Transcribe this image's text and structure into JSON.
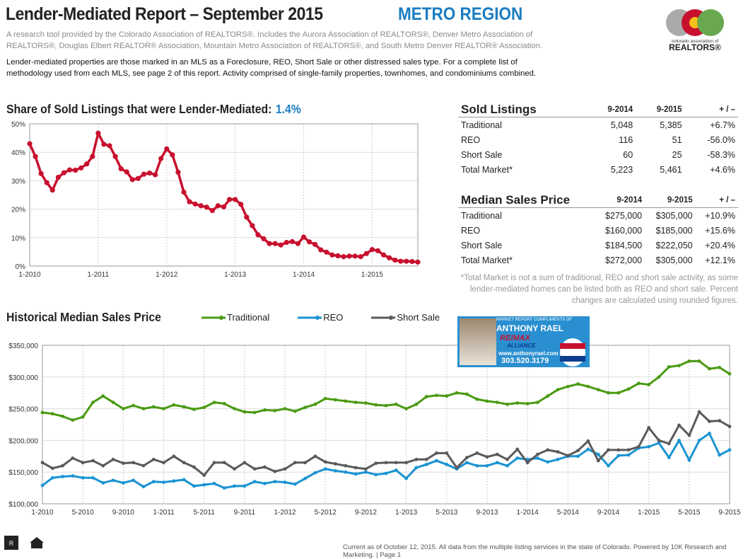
{
  "header": {
    "title": "Lender-Mediated Report – September 2015",
    "region": "METRO REGION",
    "subtitle": "A research tool provided by the Colorado Association of REALTORS®. Includes the Aurora Association of REALTORS®, Denver Metro Association of REALTORS®, Douglas Elbert REALTOR® Association, Mountain Metro Association of REALTORS®, and South Metro Denver REALTOR® Association.",
    "description": "Lender-mediated properties are those marked in an MLS as a Foreclosure, REO, Short Sale or other distressed sales type. For a complete list of methodology used from each MLS, see page 2 of this report. Activity comprised of single-family properties, townhomes, and condominiums combined.",
    "logo": {
      "line1": "colorado association of",
      "line2": "REALTORS®"
    }
  },
  "sold_table": {
    "title": "Sold Listings",
    "cols": [
      "9-2014",
      "9-2015",
      "+ / –"
    ],
    "rows": [
      {
        "label": "Traditional",
        "v": [
          "5,048",
          "5,385",
          "+6.7%"
        ]
      },
      {
        "label": "REO",
        "v": [
          "116",
          "51",
          "-56.0%"
        ]
      },
      {
        "label": "Short Sale",
        "v": [
          "60",
          "25",
          "-58.3%"
        ]
      },
      {
        "label": "Total Market*",
        "v": [
          "5,223",
          "5,461",
          "+4.6%"
        ]
      }
    ]
  },
  "price_table": {
    "title": "Median Sales Price",
    "cols": [
      "9-2014",
      "9-2015",
      "+ / –"
    ],
    "rows": [
      {
        "label": "Traditional",
        "v": [
          "$275,000",
          "$305,000",
          "+10.9%"
        ]
      },
      {
        "label": "REO",
        "v": [
          "$160,000",
          "$185,000",
          "+15.6%"
        ]
      },
      {
        "label": "Short Sale",
        "v": [
          "$184,500",
          "$222,050",
          "+20.4%"
        ]
      },
      {
        "label": "Total Market*",
        "v": [
          "$272,000",
          "$305,000",
          "+12.1%"
        ]
      }
    ]
  },
  "note": "*Total Market is not a sum of traditional, REO and short sale activity, as some lender-mediated homes can be listed both as REO and short sale. Percent changes are calculated using rounded figures.",
  "ad": {
    "line1": "MARKET REPORT COMPLIMENTS OF",
    "name": "ANTHONY RAEL",
    "brand": "RE/MAX",
    "office": "ALLIANCE",
    "url": "www.anthonyrael.com",
    "phone": "303.520.3179"
  },
  "footer": "Current as of October 12, 2015. All data from the multiple listing services in the state of Colorado. Powered by 10K Research and Marketing. | Page 1",
  "chart_data": [
    {
      "type": "line",
      "title": "Share of Sold Listings that were Lender-Mediated:",
      "headline_value": "1.4%",
      "color": "#c8102e",
      "x_start": "1-2010",
      "x_end": "9-2015",
      "frequency": "monthly",
      "xticks": [
        "1-2010",
        "1-2011",
        "1-2012",
        "1-2013",
        "1-2014",
        "1-2015"
      ],
      "yticks": [
        "0%",
        "10%",
        "20%",
        "30%",
        "40%",
        "50%"
      ],
      "ylim": [
        0,
        50
      ],
      "grid": true,
      "values": [
        43,
        38.5,
        32.5,
        29.3,
        26.7,
        31.2,
        32.8,
        33.8,
        33.7,
        34.5,
        35.9,
        38.5,
        46.7,
        42.8,
        42.3,
        38.5,
        34.2,
        33.1,
        30.4,
        30.8,
        32.3,
        32.7,
        32.1,
        37.8,
        41.2,
        39.1,
        33,
        26,
        22.6,
        21.8,
        21.2,
        20.7,
        19.5,
        21.2,
        20.8,
        23.4,
        23.4,
        21.7,
        17.2,
        14.2,
        11,
        9.6,
        7.9,
        7.9,
        7.4,
        8.3,
        8.6,
        7.9,
        10.2,
        8.5,
        7.6,
        5.7,
        4.9,
        3.9,
        3.6,
        3.3,
        3.5,
        3.5,
        3.3,
        4.4,
        5.8,
        5.4,
        3.9,
        2.9,
        2.1,
        1.7,
        1.7,
        1.6,
        1.4
      ]
    },
    {
      "type": "line",
      "title": "Historical Median Sales Price",
      "x_start": "1-2010",
      "x_end": "9-2015",
      "frequency": "monthly",
      "ylim": [
        100000,
        350000
      ],
      "grid": true,
      "legend": "top",
      "xticks": [
        "1-2010",
        "5-2010",
        "9-2010",
        "1-2011",
        "5-2011",
        "9-2011",
        "1-2012",
        "5-2012",
        "9-2012",
        "1-2013",
        "5-2013",
        "9-2013",
        "1-2014",
        "5-2014",
        "9-2014",
        "1-2015",
        "5-2015",
        "9-2015"
      ],
      "yticks": [
        "$100,000",
        "$150,000",
        "$200,000",
        "$250,000",
        "$300,000",
        "$350,000"
      ],
      "series": [
        {
          "name": "Traditional",
          "color": "#4a9a12",
          "values": [
            244000,
            242000,
            238000,
            232000,
            237000,
            260000,
            270000,
            260000,
            250000,
            255000,
            250000,
            253000,
            250000,
            256000,
            253000,
            249000,
            252000,
            260000,
            258000,
            250000,
            245000,
            244000,
            248000,
            247000,
            250000,
            246000,
            252000,
            257000,
            266000,
            264000,
            262000,
            260000,
            259000,
            256000,
            255000,
            257000,
            250000,
            257000,
            269000,
            271000,
            270000,
            275000,
            273000,
            265000,
            262000,
            260000,
            257000,
            259000,
            258000,
            260000,
            270000,
            280000,
            285000,
            289000,
            285000,
            280000,
            275000,
            275000,
            281000,
            290000,
            288000,
            300000,
            316000,
            318000,
            325000,
            325000,
            313000,
            315000,
            305000
          ]
        },
        {
          "name": "REO",
          "color": "#1a93d2",
          "values": [
            129000,
            141000,
            143000,
            144000,
            141000,
            141000,
            133000,
            137000,
            133000,
            137000,
            127000,
            135000,
            134000,
            136000,
            138000,
            128000,
            130000,
            132000,
            125000,
            128000,
            128000,
            135000,
            132000,
            135000,
            134000,
            131000,
            140000,
            149000,
            155000,
            152000,
            150000,
            147000,
            150000,
            146000,
            148000,
            153000,
            140000,
            157000,
            162000,
            168000,
            162000,
            155000,
            165000,
            160000,
            160000,
            165000,
            160000,
            172000,
            170000,
            172000,
            166000,
            170000,
            175000,
            175000,
            186000,
            178000,
            160000,
            176000,
            177000,
            188000,
            190000,
            196000,
            173000,
            200000,
            169000,
            200000,
            211000,
            177000,
            185000
          ]
        },
        {
          "name": "Short Sale",
          "color": "#5a5a5a",
          "values": [
            165000,
            156000,
            160000,
            172000,
            165000,
            168000,
            160000,
            170000,
            164000,
            165000,
            160000,
            170000,
            165000,
            175000,
            165000,
            158000,
            145000,
            165000,
            165000,
            155000,
            165000,
            155000,
            158000,
            151000,
            155000,
            165000,
            165000,
            175000,
            166000,
            163000,
            160000,
            157000,
            155000,
            164000,
            165000,
            165000,
            165000,
            170000,
            170000,
            180000,
            180000,
            157000,
            173000,
            180000,
            174000,
            178000,
            170000,
            186000,
            165000,
            178000,
            185000,
            182000,
            176000,
            184000,
            199000,
            168000,
            185000,
            185000,
            185000,
            190000,
            220000,
            200000,
            195000,
            224000,
            208000,
            245000,
            230000,
            231000,
            222000
          ]
        }
      ]
    }
  ]
}
